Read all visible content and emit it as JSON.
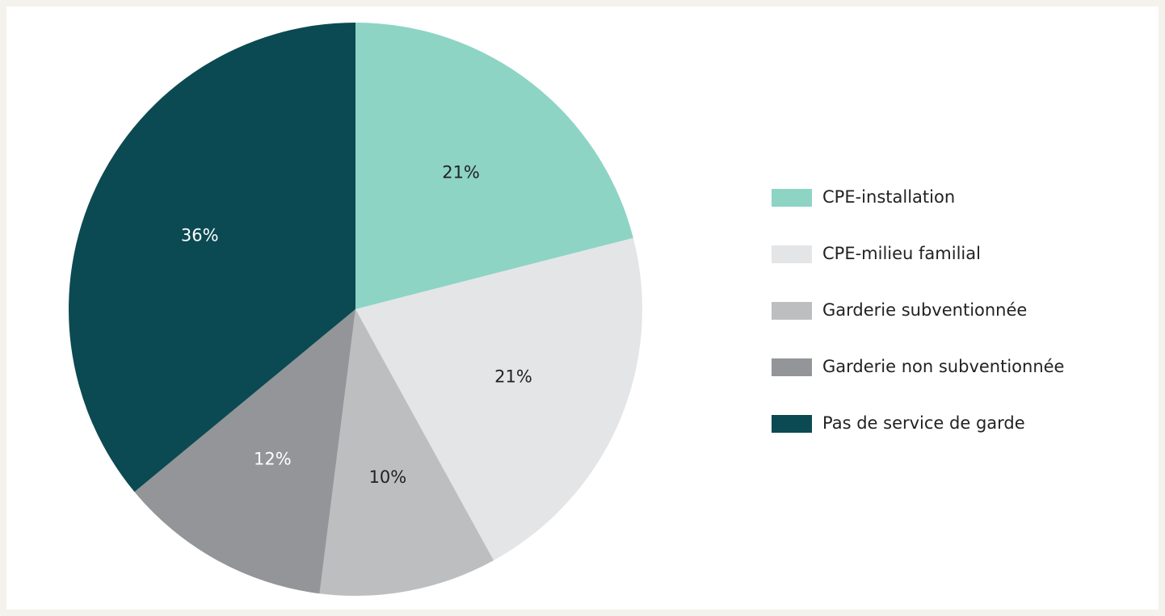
{
  "chart_data": {
    "type": "pie",
    "categories": [
      "CPE-installation",
      "CPE-milieu familial",
      "Garderie subventionnée",
      "Garderie non subventionnée",
      "Pas de service de garde"
    ],
    "values": [
      21,
      21,
      10,
      12,
      36
    ],
    "value_labels": [
      "21%",
      "21%",
      "10%",
      "12%",
      "36%"
    ],
    "colors": [
      "#8dd4c5",
      "#e4e5e7",
      "#bdbec0",
      "#939598",
      "#0b4a52"
    ],
    "label_colors": [
      "#222222",
      "#222222",
      "#222222",
      "#ffffff",
      "#ffffff"
    ],
    "legend": "right"
  }
}
